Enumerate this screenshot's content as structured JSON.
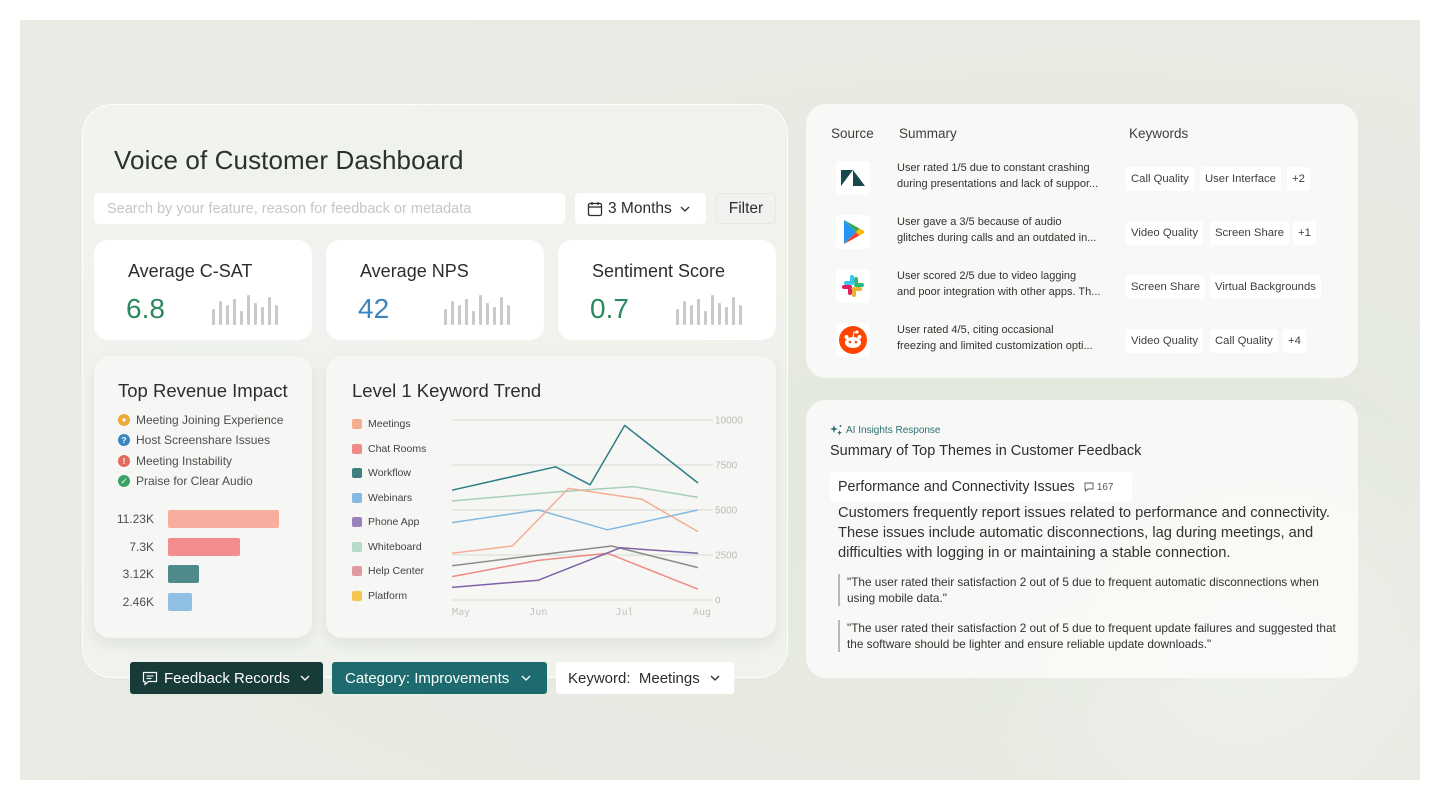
{
  "dashboard": {
    "title": "Voice of Customer Dashboard",
    "search_placeholder": "Search by your feature, reason for feedback or metadata",
    "range_label": "3 Months",
    "filter_label": "Filter",
    "kpis": [
      {
        "label": "Average C-SAT",
        "value": "6.8",
        "color": "#2a8a5e"
      },
      {
        "label": "Average NPS",
        "value": "42",
        "color": "#3a86c0"
      },
      {
        "label": "Sentiment Score",
        "value": "0.7",
        "color": "#2a8a5e"
      }
    ]
  },
  "revenue": {
    "title": "Top Revenue Impact",
    "legend": [
      {
        "label": "Meeting Joining Experience",
        "color": "#f0a838",
        "glyph": "✦"
      },
      {
        "label": "Host Screenshare Issues",
        "color": "#3a86c0",
        "glyph": "?"
      },
      {
        "label": "Meeting Instability",
        "color": "#e46b5c",
        "glyph": "!"
      },
      {
        "label": "Praise for Clear Audio",
        "color": "#3aa367",
        "glyph": "✓"
      }
    ],
    "bars": [
      {
        "label": "11.23K",
        "value": 11.23,
        "color": "#f8ae9e"
      },
      {
        "label": "7.3K",
        "value": 7.3,
        "color": "#f48c8c"
      },
      {
        "label": "3.12K",
        "value": 3.12,
        "color": "#4f8a8d"
      },
      {
        "label": "2.46K",
        "value": 2.46,
        "color": "#8fc0e3"
      }
    ]
  },
  "trend": {
    "title": "Level 1 Keyword Trend",
    "legend": [
      {
        "label": "Meetings",
        "color": "#f6ad96"
      },
      {
        "label": "Chat Rooms",
        "color": "#f08a86"
      },
      {
        "label": "Workflow",
        "color": "#3f7f80"
      },
      {
        "label": "Webinars",
        "color": "#86b9e0"
      },
      {
        "label": "Phone App",
        "color": "#9a82b8"
      },
      {
        "label": "Whiteboard",
        "color": "#b5dcc8"
      },
      {
        "label": "Help Center",
        "color": "#e09aa0"
      },
      {
        "label": "Platform",
        "color": "#f5c451"
      }
    ]
  },
  "chart_data": {
    "type": "line",
    "title": "Level 1 Keyword Trend",
    "x": [
      "May",
      "Jun",
      "Jul",
      "Aug"
    ],
    "y_ticks": [
      "0",
      "2500",
      "5000",
      "7500",
      "10000"
    ],
    "ylim": [
      0,
      10000
    ],
    "grid": true,
    "legend_position": "left",
    "series": [
      {
        "name": "Workflow",
        "color": "#2f7d86",
        "points": [
          [
            0,
            6100
          ],
          [
            1.2,
            7400
          ],
          [
            1.6,
            6400
          ],
          [
            2.0,
            9700
          ],
          [
            2.85,
            6500
          ]
        ]
      },
      {
        "name": "Whiteboard",
        "color": "#a6cfbd",
        "points": [
          [
            0,
            5500
          ],
          [
            1.2,
            6000
          ],
          [
            2.1,
            6300
          ],
          [
            2.85,
            5700
          ]
        ]
      },
      {
        "name": "Webinars",
        "color": "#86b9e0",
        "points": [
          [
            0,
            4300
          ],
          [
            1.0,
            5000
          ],
          [
            1.8,
            3900
          ],
          [
            2.85,
            5000
          ]
        ]
      },
      {
        "name": "Meetings",
        "color": "#f6ad96",
        "points": [
          [
            0,
            2600
          ],
          [
            0.7,
            3000
          ],
          [
            1.35,
            6200
          ],
          [
            2.2,
            5600
          ],
          [
            2.85,
            3800
          ]
        ]
      },
      {
        "name": "Help Center",
        "color": "#8a8e8b",
        "points": [
          [
            0,
            1900
          ],
          [
            1.0,
            2500
          ],
          [
            1.85,
            3000
          ],
          [
            2.85,
            1800
          ]
        ]
      },
      {
        "name": "Chat Rooms",
        "color": "#f08a86",
        "points": [
          [
            0,
            1300
          ],
          [
            1.0,
            2200
          ],
          [
            1.8,
            2600
          ],
          [
            2.85,
            600
          ]
        ]
      },
      {
        "name": "Phone App",
        "color": "#7e62a8",
        "points": [
          [
            0,
            700
          ],
          [
            1.0,
            1100
          ],
          [
            1.95,
            2900
          ],
          [
            2.85,
            2600
          ]
        ]
      }
    ]
  },
  "pills": [
    {
      "label": "Feedback Records"
    },
    {
      "label": "Category: Improvements"
    },
    {
      "label": "Keyword:  Meetings"
    }
  ],
  "feedback": {
    "headers": {
      "source": "Source",
      "summary": "Summary",
      "keywords": "Keywords"
    },
    "rows": [
      {
        "source_icon": "zendesk-icon",
        "line1": "User rated  1/5 due to constant crashing",
        "line2": "during presentations and lack of suppor...",
        "tags": [
          "Call Quality",
          "User Interface",
          "+2"
        ]
      },
      {
        "source_icon": "google-play-icon",
        "line1": "User gave  a 3/5 because of audio",
        "line2": "glitches during calls and an outdated in...",
        "tags": [
          "Video Quality",
          "Screen Share",
          "+1"
        ]
      },
      {
        "source_icon": "slack-icon",
        "line1": "User scored  2/5 due to video lagging",
        "line2": "and poor integration with other apps. Th...",
        "tags": [
          "Screen Share",
          "Virtual Backgrounds"
        ]
      },
      {
        "source_icon": "reddit-icon",
        "line1": "User rated  4/5, citing occasional",
        "line2": "freezing and limited customization opti...",
        "tags": [
          "Video Quality",
          "Call Quality",
          "+4"
        ]
      }
    ]
  },
  "insights": {
    "label": "AI Insights Response",
    "title": "Summary of Top Themes in Customer Feedback",
    "theme": "Performance and Connectivity Issues",
    "theme_count": "167",
    "body": "Customers frequently report issues related to performance and connectivity. These issues include automatic disconnections, lag during meetings, and difficulties with logging in or maintaining a stable connection.",
    "quotes": [
      "\"The user rated their satisfaction 2 out of 5 due to frequent automatic disconnections when using mobile data.\"",
      "\"The user rated their satisfaction 2 out of 5 due to frequent update failures and suggested that the software should be lighter and ensure reliable update downloads.\""
    ]
  }
}
